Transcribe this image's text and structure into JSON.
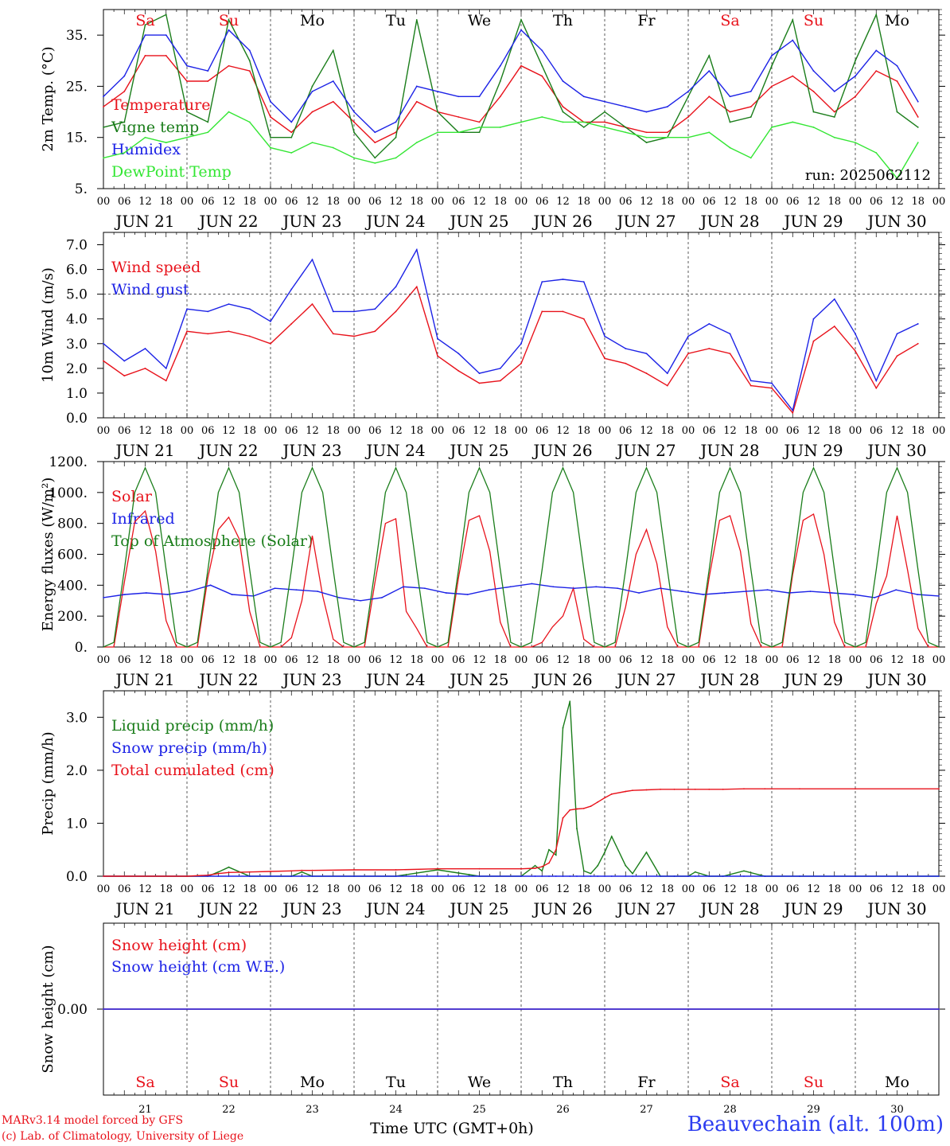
{
  "colors": {
    "red": "#e8121b",
    "green": "#1a7d1a",
    "lightgreen": "#33e633",
    "blue": "#1c22e6",
    "grid": "#333333"
  },
  "run_label": "run: 2025062112",
  "days": [
    {
      "abbr": "Sa",
      "date": "JUN 21",
      "num": "21",
      "weekend": true
    },
    {
      "abbr": "Su",
      "date": "JUN 22",
      "num": "22",
      "weekend": true
    },
    {
      "abbr": "Mo",
      "date": "JUN 23",
      "num": "23",
      "weekend": false
    },
    {
      "abbr": "Tu",
      "date": "JUN 24",
      "num": "24",
      "weekend": false
    },
    {
      "abbr": "We",
      "date": "JUN 25",
      "num": "25",
      "weekend": false
    },
    {
      "abbr": "Th",
      "date": "JUN 26",
      "num": "26",
      "weekend": false
    },
    {
      "abbr": "Fr",
      "date": "JUN 27",
      "num": "27",
      "weekend": false
    },
    {
      "abbr": "Sa",
      "date": "JUN 28",
      "num": "28",
      "weekend": true
    },
    {
      "abbr": "Su",
      "date": "JUN 29",
      "num": "29",
      "weekend": true
    },
    {
      "abbr": "Mo",
      "date": "JUN 30",
      "num": "30",
      "weekend": false
    }
  ],
  "hour_labels": [
    "00",
    "06",
    "12",
    "18"
  ],
  "final_hour_label": "00",
  "x_axis_title": "Time UTC (GMT+0h)",
  "footer": {
    "credit_line1": "MARv3.14 model forced by GFS",
    "credit_line2": "(c) Lab. of Climatology, University of Liege",
    "station": "Beauvechain (alt. 100m)"
  },
  "chart_data": [
    {
      "type": "line",
      "ylabel": "2m Temp. (°C)",
      "ylim": [
        5,
        40
      ],
      "yticks": [
        "5.",
        "15.",
        "25.",
        "35."
      ],
      "legend": [
        "Temperature",
        "Vigne temp",
        "Humidex",
        "DewPoint Temp"
      ],
      "x": [
        0,
        6,
        12,
        18,
        24,
        30,
        36,
        42,
        48,
        54,
        60,
        66,
        72,
        78,
        84,
        90,
        96,
        102,
        108,
        114,
        120,
        126,
        132,
        138,
        144,
        150,
        156,
        162,
        168,
        174,
        180,
        186,
        192,
        198,
        204,
        210,
        216,
        222,
        228,
        234
      ],
      "series": [
        {
          "name": "Temperature",
          "color": "red",
          "values": [
            21,
            24,
            31,
            31,
            26,
            26,
            29,
            28,
            19,
            16,
            20,
            22,
            18,
            14,
            16,
            22,
            20,
            19,
            18,
            23,
            29,
            27,
            21,
            18,
            18,
            17,
            16,
            16,
            19,
            23,
            20,
            21,
            25,
            27,
            24,
            20,
            23,
            28,
            26,
            19
          ]
        },
        {
          "name": "Vigne temp",
          "color": "green",
          "values": [
            17,
            18,
            37,
            39,
            20,
            18,
            38,
            30,
            15,
            15,
            25,
            32,
            16,
            11,
            15,
            38,
            20,
            16,
            16,
            26,
            38,
            29,
            20,
            17,
            20,
            17,
            14,
            15,
            23,
            31,
            18,
            19,
            29,
            38,
            20,
            19,
            30,
            39,
            20,
            17
          ]
        },
        {
          "name": "Humidex",
          "color": "blue",
          "values": [
            23,
            27,
            35,
            35,
            29,
            28,
            36,
            32,
            22,
            18,
            24,
            26,
            20,
            16,
            18,
            25,
            24,
            23,
            23,
            29,
            36,
            32,
            26,
            23,
            22,
            21,
            20,
            21,
            24,
            28,
            23,
            24,
            31,
            34,
            28,
            24,
            27,
            32,
            29,
            22
          ]
        },
        {
          "name": "DewPoint Temp",
          "color": "lightgreen",
          "values": [
            11,
            12,
            15,
            14,
            15,
            16,
            20,
            18,
            13,
            12,
            14,
            13,
            11,
            10,
            11,
            14,
            16,
            16,
            17,
            17,
            18,
            19,
            18,
            18,
            17,
            16,
            15,
            15,
            15,
            16,
            13,
            11,
            17,
            18,
            17,
            15,
            14,
            12,
            7,
            14
          ]
        }
      ]
    },
    {
      "type": "line",
      "ylabel": "10m Wind (m/s)",
      "ylim": [
        0,
        7.5
      ],
      "yticks": [
        "0.0",
        "1.0",
        "2.0",
        "3.0",
        "4.0",
        "5.0",
        "6.0",
        "7.0"
      ],
      "reference_line": 5.0,
      "legend": [
        "Wind speed",
        "Wind gust"
      ],
      "x": [
        0,
        6,
        12,
        18,
        24,
        30,
        36,
        42,
        48,
        54,
        60,
        66,
        72,
        78,
        84,
        90,
        96,
        102,
        108,
        114,
        120,
        126,
        132,
        138,
        144,
        150,
        156,
        162,
        168,
        174,
        180,
        186,
        192,
        198,
        204,
        210,
        216,
        222,
        228,
        234
      ],
      "series": [
        {
          "name": "Wind speed",
          "color": "red",
          "values": [
            2.3,
            1.7,
            2.0,
            1.5,
            3.5,
            3.4,
            3.5,
            3.3,
            3.0,
            3.8,
            4.6,
            3.4,
            3.3,
            3.5,
            4.3,
            5.3,
            2.5,
            1.9,
            1.4,
            1.5,
            2.2,
            4.3,
            4.3,
            4.0,
            2.4,
            2.2,
            1.8,
            1.3,
            2.6,
            2.8,
            2.6,
            1.3,
            1.2,
            0.2,
            3.1,
            3.7,
            2.7,
            1.2,
            2.5,
            3.0
          ]
        },
        {
          "name": "Wind gust",
          "color": "blue",
          "values": [
            3.0,
            2.3,
            2.8,
            2.0,
            4.4,
            4.3,
            4.6,
            4.4,
            3.9,
            5.2,
            6.4,
            4.3,
            4.3,
            4.4,
            5.3,
            6.8,
            3.2,
            2.6,
            1.8,
            2.0,
            3.0,
            5.5,
            5.6,
            5.5,
            3.3,
            2.8,
            2.6,
            1.8,
            3.3,
            3.8,
            3.4,
            1.5,
            1.4,
            0.3,
            4.0,
            4.8,
            3.4,
            1.5,
            3.4,
            3.8
          ]
        }
      ]
    },
    {
      "type": "line",
      "ylabel": "Energy fluxes (W/m²)",
      "ylim": [
        0,
        1200
      ],
      "yticks": [
        "0.",
        "200.",
        "400.",
        "600.",
        "800.",
        "1000.",
        "1200."
      ],
      "legend": [
        "Solar",
        "Infrared",
        "Top of Atmosphere (Solar)"
      ],
      "day_x": [
        0,
        3,
        6,
        9,
        12,
        15,
        18,
        21,
        24
      ],
      "series": [
        {
          "name": "Solar",
          "color": "red",
          "daily": [
            [
              0,
              0,
              420,
              810,
              880,
              620,
              170,
              0,
              0
            ],
            [
              0,
              0,
              450,
              760,
              840,
              700,
              230,
              0,
              0
            ],
            [
              0,
              0,
              60,
              300,
              720,
              330,
              50,
              0,
              0
            ],
            [
              0,
              0,
              420,
              800,
              830,
              230,
              120,
              0,
              0
            ],
            [
              0,
              0,
              450,
              820,
              850,
              620,
              160,
              0,
              0
            ],
            [
              0,
              0,
              30,
              130,
              200,
              380,
              50,
              0,
              0
            ],
            [
              0,
              0,
              260,
              600,
              760,
              540,
              130,
              0,
              0
            ],
            [
              0,
              0,
              450,
              820,
              850,
              620,
              150,
              0,
              0
            ],
            [
              0,
              0,
              470,
              820,
              860,
              600,
              160,
              0,
              0
            ],
            [
              0,
              0,
              280,
              460,
              850,
              500,
              120,
              0,
              0
            ]
          ]
        },
        {
          "name": "Infrared",
          "color": "blue",
          "values": [
            320,
            340,
            350,
            340,
            360,
            400,
            340,
            330,
            380,
            370,
            360,
            320,
            300,
            320,
            390,
            380,
            350,
            340,
            370,
            390,
            410,
            390,
            380,
            390,
            380,
            350,
            380,
            360,
            340,
            350,
            360,
            370,
            350,
            360,
            350,
            340,
            320,
            370,
            340,
            330
          ]
        },
        {
          "name": "Top of Atmosphere (Solar)",
          "color": "green",
          "daily": [
            [
              0,
              30,
              500,
              1000,
              1160,
              1000,
              500,
              30,
              0
            ]
          ]
        }
      ]
    },
    {
      "type": "line",
      "ylabel": "Precip (mm/h)",
      "ylim": [
        0,
        3.5
      ],
      "yticks": [
        "0.0",
        "1.0",
        "2.0",
        "3.0"
      ],
      "legend": [
        "Liquid precip (mm/h)",
        "Snow precip (mm/h)",
        "Total cumulated (cm)"
      ],
      "x": [
        0,
        24,
        30,
        33,
        36,
        42,
        48,
        54,
        57,
        60,
        72,
        84,
        96,
        108,
        120,
        124,
        126,
        128,
        130,
        132,
        134,
        136,
        138,
        140,
        142,
        144,
        146,
        150,
        152,
        156,
        160,
        164,
        168,
        170,
        174,
        178,
        184,
        190,
        200,
        216,
        240
      ],
      "series": [
        {
          "name": "Liquid precip (mm/h)",
          "color": "green",
          "values": [
            0,
            0,
            0,
            0.08,
            0.17,
            0,
            0,
            0,
            0.08,
            0,
            0,
            0,
            0.12,
            0,
            0,
            0.2,
            0.1,
            0.5,
            0.4,
            2.8,
            3.3,
            0.9,
            0.1,
            0.05,
            0.2,
            0.45,
            0.75,
            0.2,
            0.05,
            0.45,
            0,
            0,
            0,
            0.08,
            0,
            0,
            0.1,
            0,
            0,
            0,
            0
          ]
        },
        {
          "name": "Snow precip (mm/h)",
          "color": "blue",
          "values": [
            0,
            0,
            0,
            0,
            0,
            0,
            0,
            0,
            0,
            0,
            0,
            0,
            0,
            0,
            0,
            0,
            0,
            0,
            0,
            0,
            0,
            0,
            0,
            0,
            0,
            0,
            0,
            0,
            0,
            0,
            0,
            0,
            0,
            0,
            0,
            0,
            0,
            0,
            0,
            0,
            0
          ]
        },
        {
          "name": "Total cumulated (cm)",
          "color": "red",
          "values": [
            0,
            0,
            0.02,
            0.05,
            0.07,
            0.08,
            0.09,
            0.1,
            0.11,
            0.11,
            0.12,
            0.12,
            0.14,
            0.14,
            0.14,
            0.15,
            0.18,
            0.25,
            0.5,
            1.1,
            1.25,
            1.27,
            1.28,
            1.32,
            1.4,
            1.48,
            1.55,
            1.6,
            1.62,
            1.63,
            1.64,
            1.64,
            1.64,
            1.64,
            1.64,
            1.64,
            1.65,
            1.65,
            1.65,
            1.65,
            1.65
          ]
        }
      ]
    },
    {
      "type": "line",
      "ylabel": "Snow height (cm)",
      "yticks": [
        "0.00"
      ],
      "legend": [
        "Snow height (cm)",
        "Snow height (cm W.E.)"
      ],
      "x": [
        0,
        240
      ],
      "series": [
        {
          "name": "Snow height (cm)",
          "color": "red",
          "values": [
            0,
            0
          ]
        },
        {
          "name": "Snow height (cm W.E.)",
          "color": "blue",
          "values": [
            0,
            0
          ]
        }
      ]
    }
  ]
}
